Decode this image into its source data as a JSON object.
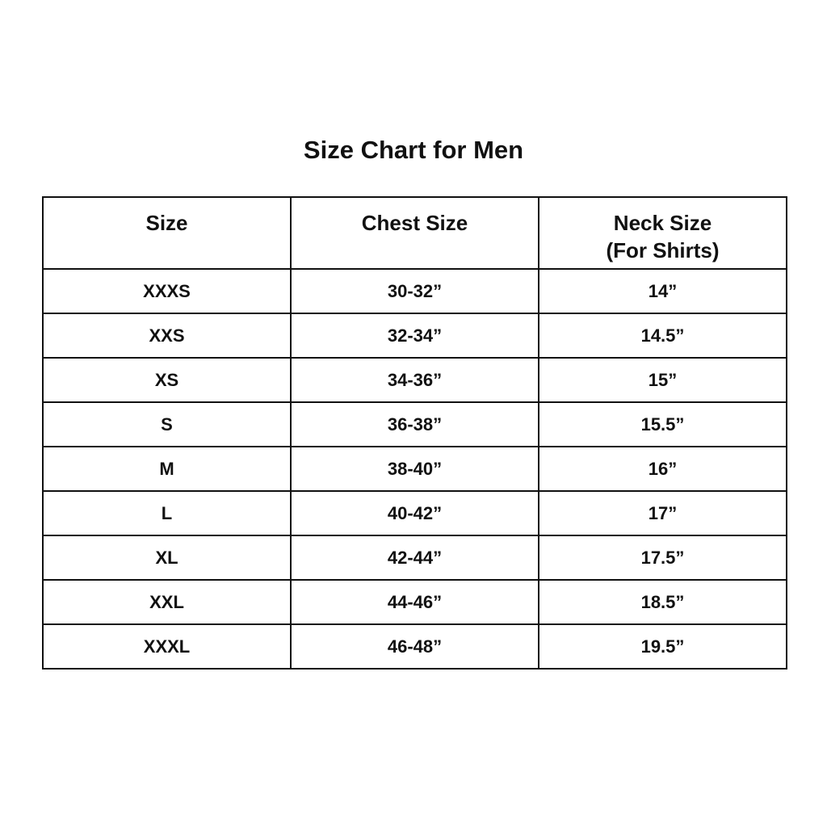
{
  "title": "Size Chart for Men",
  "headers": [
    "Size",
    "Chest Size",
    "Neck Size",
    "(For Shirts)"
  ],
  "rows": [
    [
      "XXXS",
      "30-32”",
      "14”"
    ],
    [
      "XXS",
      "32-34”",
      "14.5”"
    ],
    [
      "XS",
      "34-36”",
      "15”"
    ],
    [
      "S",
      "36-38”",
      "15.5”"
    ],
    [
      "M",
      "38-40”",
      "16”"
    ],
    [
      "L",
      "40-42”",
      "17”"
    ],
    [
      "XL",
      "42-44”",
      "17.5”"
    ],
    [
      "XXL",
      "44-46”",
      "18.5”"
    ],
    [
      "XXXL",
      "46-48”",
      "19.5”"
    ]
  ]
}
